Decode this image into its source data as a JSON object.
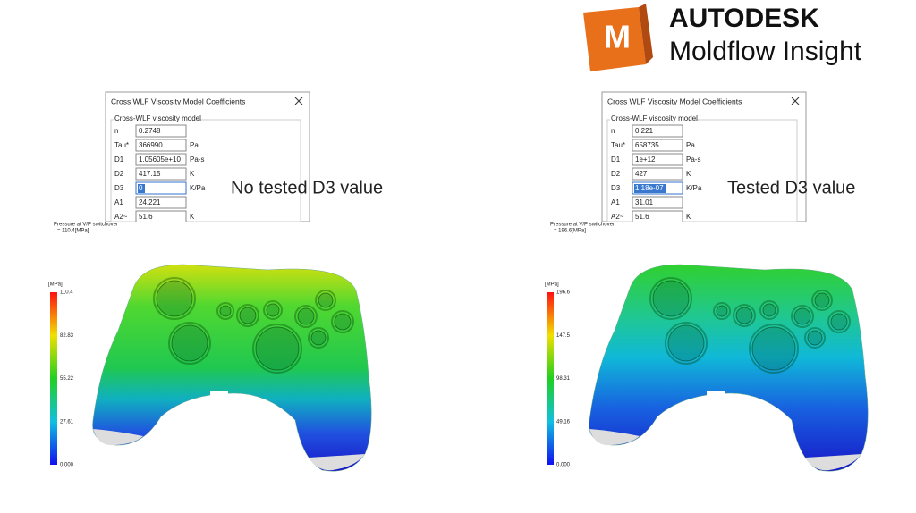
{
  "logo": {
    "mark": "M",
    "brand": "AUTODESK",
    "product": "Moldflow Insight"
  },
  "panels": [
    {
      "dialog": {
        "title": "Cross WLF Viscosity Model Coefficients",
        "group": "Cross-WLF viscosity model",
        "rows": [
          {
            "label": "n",
            "value": "0.2748"
          },
          {
            "label": "Tau*",
            "value": "366990",
            "unit": "Pa"
          },
          {
            "label": "D1",
            "value": "1.05605e+10",
            "unit": "Pa-s"
          },
          {
            "label": "D2",
            "value": "417.15",
            "unit": "K"
          },
          {
            "label": "D3",
            "value": "0",
            "unit": "K/Pa"
          },
          {
            "label": "A1",
            "value": "24.221"
          },
          {
            "label": "A2~",
            "value": "51.6",
            "unit": "K"
          }
        ]
      },
      "caption": "No tested D3 value",
      "result": {
        "title": "Pressure at V/P switchover",
        "subtitle": "= 110.4[MPa]",
        "unit": "[MPa]",
        "scale": [
          "110.4",
          "82.83",
          "55.22",
          "27.61",
          "0.000"
        ]
      }
    },
    {
      "dialog": {
        "title": "Cross WLF Viscosity Model Coefficients",
        "group": "Cross-WLF viscosity model",
        "rows": [
          {
            "label": "n",
            "value": "0.221"
          },
          {
            "label": "Tau*",
            "value": "658735",
            "unit": "Pa"
          },
          {
            "label": "D1",
            "value": "1e+12",
            "unit": "Pa-s"
          },
          {
            "label": "D2",
            "value": "427",
            "unit": "K"
          },
          {
            "label": "D3",
            "value": "1.18e-07",
            "unit": "K/Pa"
          },
          {
            "label": "A1",
            "value": "31.01"
          },
          {
            "label": "A2~",
            "value": "51.6",
            "unit": "K"
          }
        ]
      },
      "caption": "Tested D3 value",
      "result": {
        "title": "Pressure at V/P switchover",
        "subtitle": "= 196.6[MPa]",
        "unit": "[MPa]",
        "scale": [
          "196.6",
          "147.5",
          "98.31",
          "49.16",
          "0.000"
        ]
      }
    }
  ]
}
